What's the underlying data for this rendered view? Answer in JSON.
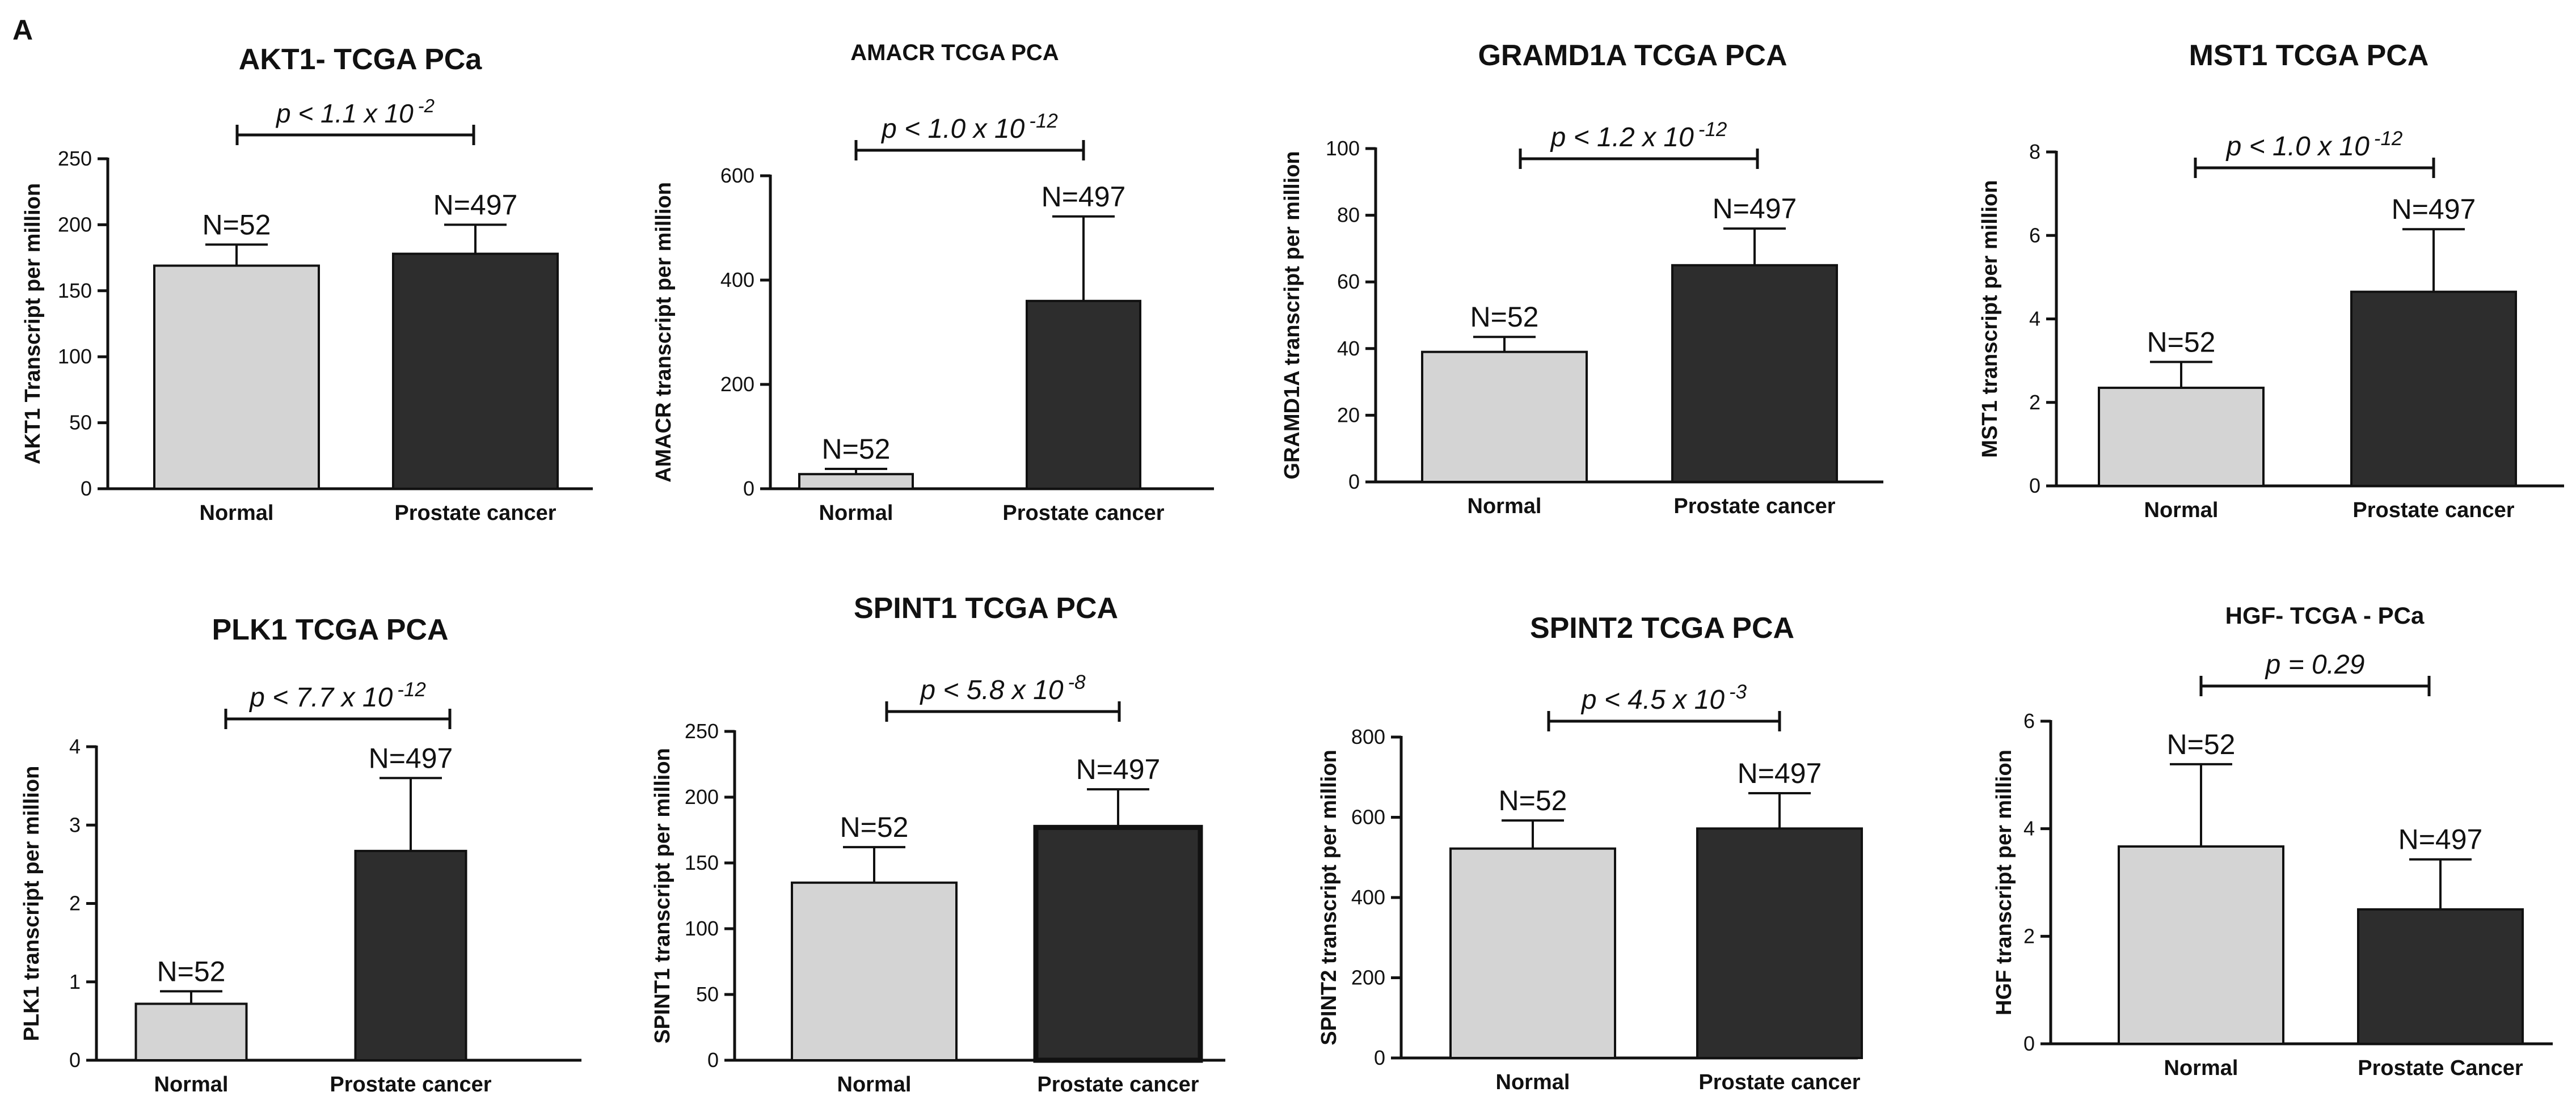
{
  "figure": {
    "panel_label": "A"
  },
  "colors": {
    "normal": "#d4d4d4",
    "cancer": "#2d2d2d",
    "stroke": "#111111",
    "text": "#111111"
  },
  "chart_data": [
    {
      "type": "bar",
      "title": "AKT1- TCGA  PCa",
      "ylabel": "AKT1 Transcript per million",
      "xlabel": "",
      "categories": [
        "Normal",
        "Prostate cancer"
      ],
      "values": [
        169,
        178
      ],
      "errors": [
        16,
        22
      ],
      "n_labels": [
        "N=52",
        "N=497"
      ],
      "pvalue": {
        "prefix": "p < 1.1 x 10",
        "exponent": "-2"
      },
      "ylim": [
        0,
        250
      ],
      "yticks": [
        "0",
        "50",
        "100",
        "150",
        "200",
        "250"
      ]
    },
    {
      "type": "bar",
      "title": "AMACR  TCGA  PCA",
      "ylabel": "AMACR transcript per million",
      "xlabel": "",
      "categories": [
        "Normal",
        "Prostate cancer"
      ],
      "values": [
        28,
        360
      ],
      "errors": [
        10,
        162
      ],
      "n_labels": [
        "N=52",
        "N=497"
      ],
      "pvalue": {
        "prefix": "p < 1.0 x 10",
        "exponent": "-12"
      },
      "ylim": [
        0,
        600
      ],
      "yticks": [
        "0",
        "200",
        "400",
        "600"
      ]
    },
    {
      "type": "bar",
      "title": "GRAMD1A TCGA PCA",
      "ylabel": "GRAMD1A transcript per million",
      "xlabel": "",
      "categories": [
        "Normal",
        "Prostate cancer"
      ],
      "values": [
        39,
        65
      ],
      "errors": [
        4.5,
        11
      ],
      "n_labels": [
        "N=52",
        "N=497"
      ],
      "pvalue": {
        "prefix": "p < 1.2 x 10",
        "exponent": "-12"
      },
      "ylim": [
        0,
        100
      ],
      "yticks": [
        "0",
        "20",
        "40",
        "60",
        "80",
        "100"
      ]
    },
    {
      "type": "bar",
      "title": "MST1 TCGA PCA",
      "ylabel": "MST1 transcript per million",
      "xlabel": "",
      "categories": [
        "Normal",
        "Prostate cancer"
      ],
      "values": [
        2.35,
        4.65
      ],
      "errors": [
        0.62,
        1.5
      ],
      "n_labels": [
        "N=52",
        "N=497"
      ],
      "pvalue": {
        "prefix": "p < 1.0 x 10",
        "exponent": "-12"
      },
      "ylim": [
        0,
        8
      ],
      "yticks": [
        "0",
        "2",
        "4",
        "6",
        "8"
      ]
    },
    {
      "type": "bar",
      "title": "PLK1 TCGA PCA",
      "ylabel": "PLK1 transcript per million",
      "xlabel": "",
      "categories": [
        "Normal",
        "Prostate cancer"
      ],
      "values": [
        0.72,
        2.67
      ],
      "errors": [
        0.16,
        0.93
      ],
      "n_labels": [
        "N=52",
        "N=497"
      ],
      "pvalue": {
        "prefix": "p < 7.7 x 10",
        "exponent": "-12"
      },
      "ylim": [
        0,
        4
      ],
      "yticks": [
        "0",
        "1",
        "2",
        "3",
        "4"
      ]
    },
    {
      "type": "bar",
      "title": "SPINT1 TCGA PCA",
      "ylabel": "SPINT1  transcript per million",
      "xlabel": "",
      "categories": [
        "Normal",
        "Prostate cancer"
      ],
      "values": [
        135,
        177
      ],
      "errors": [
        27,
        29
      ],
      "n_labels": [
        "N=52",
        "N=497"
      ],
      "pvalue": {
        "prefix": "p < 5.8 x 10",
        "exponent": "-8"
      },
      "ylim": [
        0,
        250
      ],
      "yticks": [
        "0",
        "50",
        "100",
        "150",
        "200",
        "250"
      ]
    },
    {
      "type": "bar",
      "title": "SPINT2 TCGA PCA",
      "ylabel": "SPINT2 transcript per million",
      "xlabel": "",
      "categories": [
        "Normal",
        "Prostate cancer"
      ],
      "values": [
        522,
        572
      ],
      "errors": [
        70,
        88
      ],
      "n_labels": [
        "N=52",
        "N=497"
      ],
      "pvalue": {
        "prefix": "p < 4.5 x 10",
        "exponent": "-3"
      },
      "ylim": [
        0,
        800
      ],
      "yticks": [
        "0",
        "200",
        "400",
        "600",
        "800"
      ]
    },
    {
      "type": "bar",
      "title": "HGF- TCGA - PCa",
      "ylabel": "HGF transcript per million",
      "xlabel": "",
      "categories": [
        "Normal",
        "Prostate Cancer"
      ],
      "values": [
        3.67,
        2.5
      ],
      "errors": [
        1.53,
        0.93
      ],
      "n_labels": [
        "N=52",
        "N=497"
      ],
      "pvalue": {
        "prefix": "p = 0.29",
        "exponent": ""
      },
      "ylim": [
        0,
        6
      ],
      "yticks": [
        "0",
        "2",
        "4",
        "6"
      ]
    }
  ]
}
